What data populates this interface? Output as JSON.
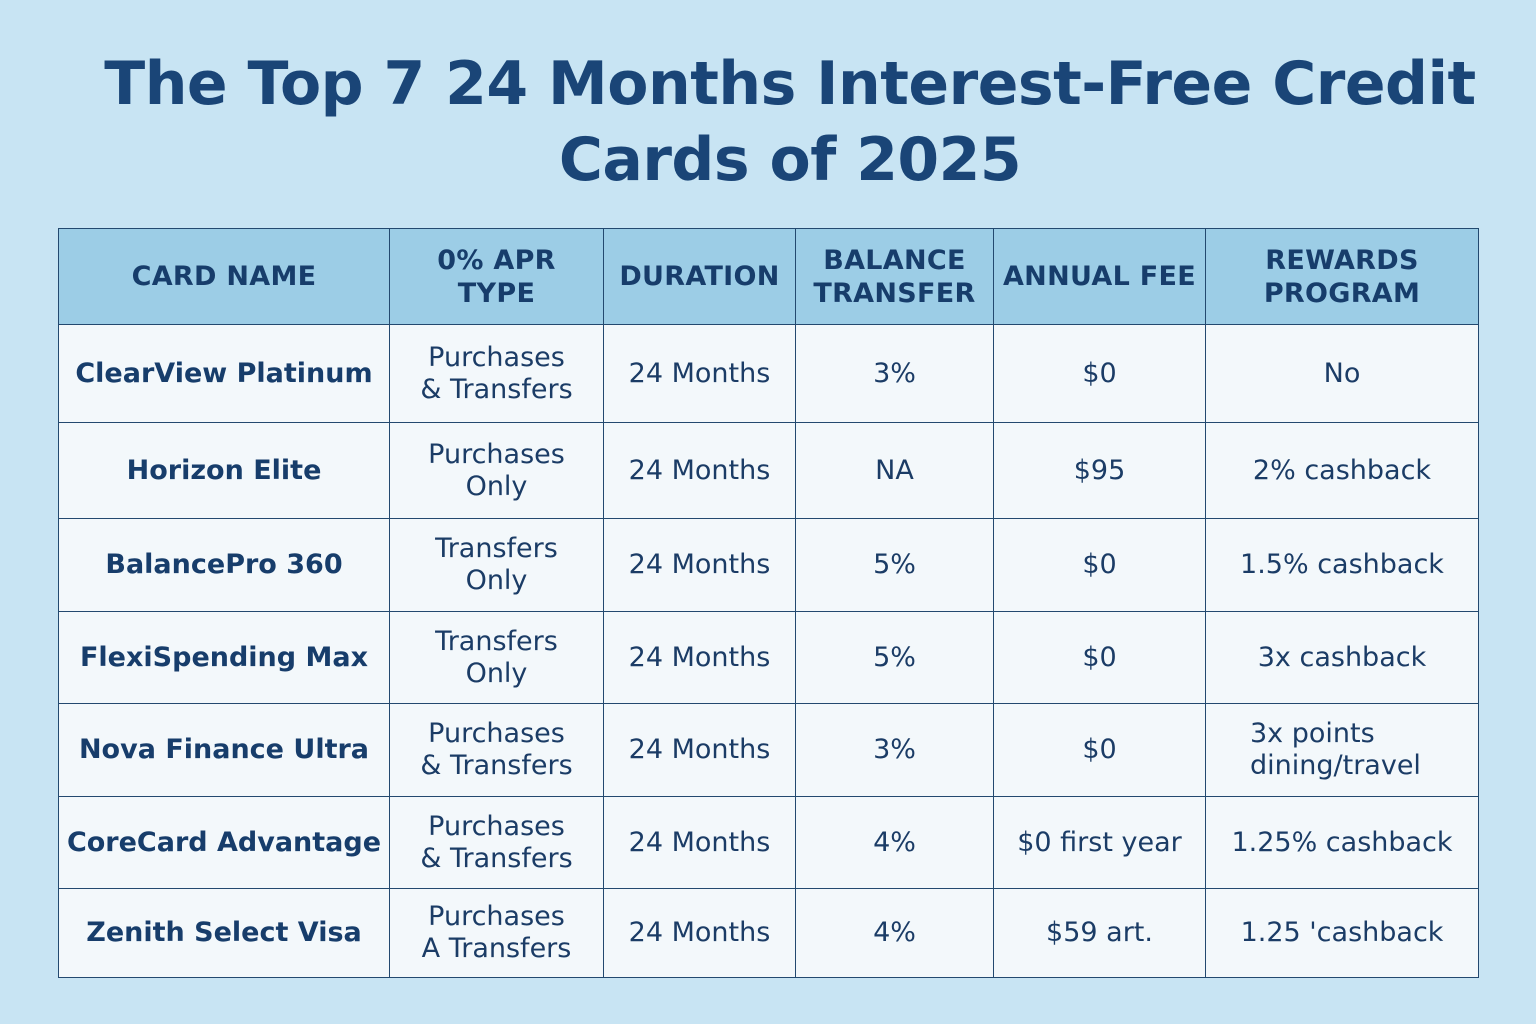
{
  "title": {
    "line1": "The Top 7 24 Months Interest-Free Credit",
    "line2": "Cards of 2025"
  },
  "table": {
    "headers": {
      "card_name": "CARD NAME",
      "apr_type": "0% APR\nTYPE",
      "duration": "DURATION",
      "balance_transfer": "BALANCE\nTRANSFER",
      "annual_fee": "ANNUAL FEE",
      "rewards": "REWARDS\nPROGRAM"
    },
    "rows": [
      {
        "card_name": "ClearView Platinum",
        "apr_type": "Purchases\n& Transfers",
        "duration": "24 Months",
        "balance_transfer": "3%",
        "annual_fee": "$0",
        "rewards": "No"
      },
      {
        "card_name": "Horizon Elite",
        "apr_type": "Purchases\nOnly",
        "duration": "24 Months",
        "balance_transfer": "NA",
        "annual_fee": "$95",
        "rewards": "2% cashback"
      },
      {
        "card_name": "BalancePro 360",
        "apr_type": "Transfers\nOnly",
        "duration": "24 Months",
        "balance_transfer": "5%",
        "annual_fee": "$0",
        "rewards": "1.5% cashback"
      },
      {
        "card_name": "FlexiSpending Max",
        "apr_type": "Transfers\nOnly",
        "duration": "24 Months",
        "balance_transfer": "5%",
        "annual_fee": "$0",
        "rewards": "3x cashback"
      },
      {
        "card_name": "Nova Finance Ultra",
        "apr_type": "Purchases\n& Transfers",
        "duration": "24 Months",
        "balance_transfer": "3%",
        "annual_fee": "$0",
        "rewards": "3x points\ndining/travel"
      },
      {
        "card_name": "CoreCard Advantage",
        "apr_type": "Purchases\n& Transfers",
        "duration": "24 Months",
        "balance_transfer": "4%",
        "annual_fee": "$0 first year",
        "rewards": "1.25% cashback"
      },
      {
        "card_name": "Zenith Select Visa",
        "apr_type": "Purchases\nA Transfers",
        "duration": "24 Months",
        "balance_transfer": "4%",
        "annual_fee": "$59 art.",
        "rewards": "1.25 'cashback"
      }
    ]
  }
}
